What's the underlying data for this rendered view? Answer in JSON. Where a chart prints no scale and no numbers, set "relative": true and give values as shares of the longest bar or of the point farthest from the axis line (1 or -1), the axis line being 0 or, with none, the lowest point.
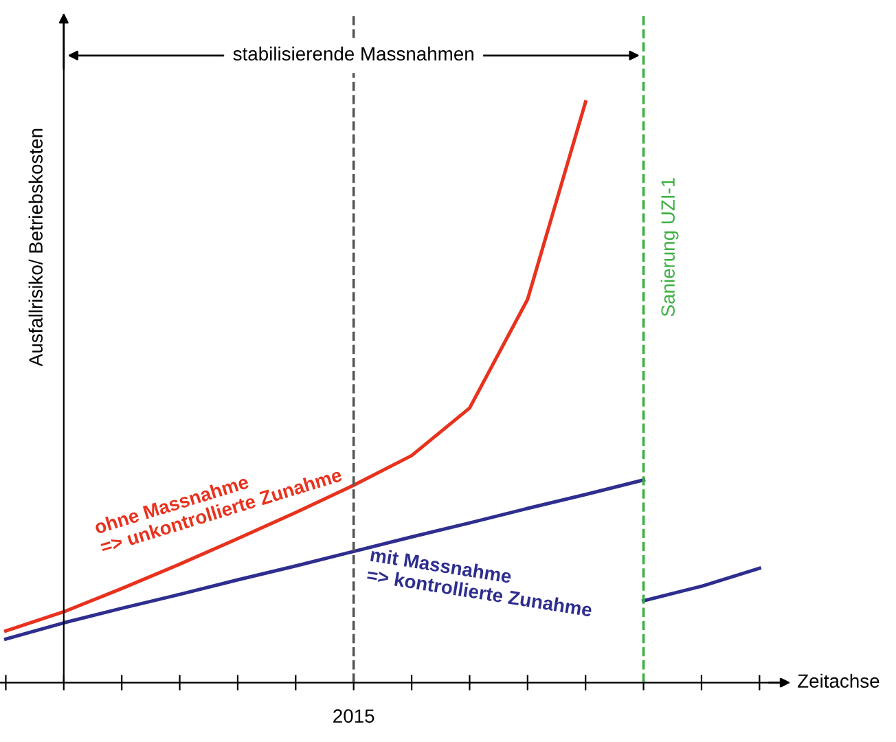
{
  "chart_data": {
    "type": "line",
    "relative": true,
    "xlabel": "Zeitachse",
    "ylabel": "Ausfallrisiko/ Betriebskosten",
    "categories": [
      null,
      null,
      null,
      null,
      null,
      null,
      null,
      null,
      null,
      null,
      null,
      null,
      null,
      null
    ],
    "series": [
      {
        "color": "#e8321e",
        "values": [
          0.089,
          0.122,
          0.162,
          0.204,
          0.248,
          0.293,
          0.34,
          0.391,
          0.473,
          0.66,
          1.0,
          null,
          null,
          null
        ]
      },
      {
        "color": "#2e2e8f",
        "values": [
          0.075,
          0.103,
          0.128,
          0.152,
          0.177,
          0.201,
          0.226,
          0.251,
          0.275,
          0.3,
          0.324,
          0.349,
          null,
          null
        ]
      },
      {
        "color": "#2e2e8f",
        "values": [
          null,
          null,
          null,
          null,
          null,
          null,
          null,
          null,
          null,
          null,
          null,
          0.141,
          0.166,
          0.197
        ]
      }
    ],
    "annotations": [
      "stabilisierende Massnahmen",
      "ohne Massnahme\n=> unkontrollierte Zunahme",
      "mit Massnahme\n=> kontrollierte Zunahme",
      "Sanierung UZI-1",
      "2015"
    ],
    "legend": false,
    "grid": false,
    "marker": "none",
    "line_style": "solid"
  }
}
